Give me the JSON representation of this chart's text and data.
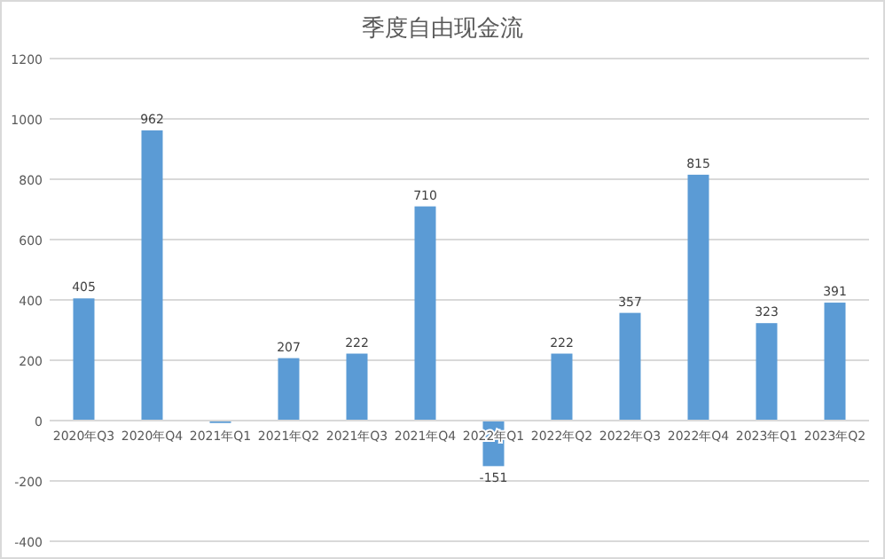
{
  "chart_data": {
    "type": "bar",
    "title": "季度自由现金流",
    "categories": [
      "2020年Q3",
      "2020年Q4",
      "2021年Q1",
      "2021年Q2",
      "2021年Q3",
      "2021年Q4",
      "2022年Q1",
      "2022年Q2",
      "2022年Q3",
      "2022年Q4",
      "2023年Q1",
      "2023年Q2"
    ],
    "values": [
      405,
      962,
      -8,
      207,
      222,
      710,
      -151,
      222,
      357,
      815,
      323,
      391
    ],
    "value_labels": [
      "405",
      "962",
      null,
      "207",
      "222",
      "710",
      "-151",
      "222",
      "357",
      "815",
      "323",
      "391"
    ],
    "color": "#5b9bd5",
    "ylim": [
      -400,
      1200
    ],
    "yticks": [
      -400,
      -200,
      0,
      200,
      400,
      600,
      800,
      1000,
      1200
    ],
    "grid": "y"
  }
}
